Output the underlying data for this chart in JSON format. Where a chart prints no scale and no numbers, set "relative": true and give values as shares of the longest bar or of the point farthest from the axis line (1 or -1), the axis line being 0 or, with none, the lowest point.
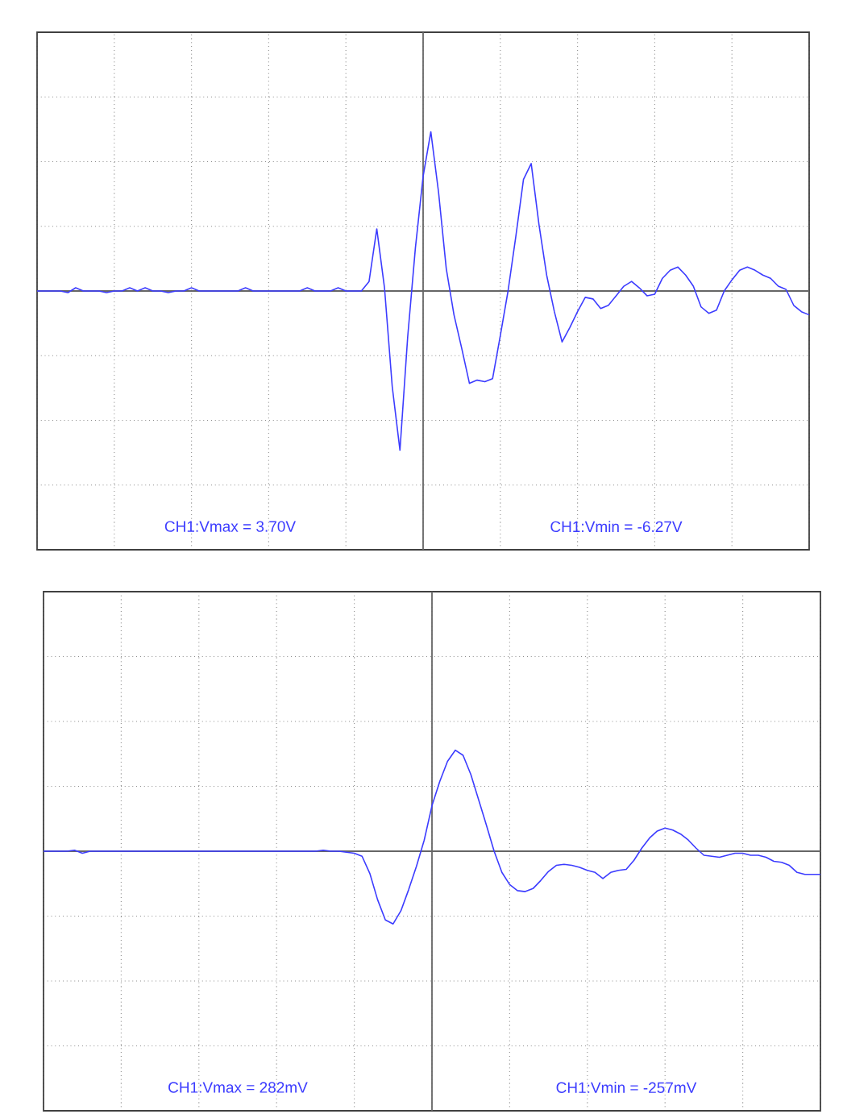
{
  "chart_data": [
    {
      "type": "line",
      "relative": true,
      "grid": true,
      "line_style": "solid",
      "categories": [
        null,
        null,
        null,
        null,
        null,
        null,
        null,
        null,
        null,
        null,
        null,
        null,
        null,
        null,
        null,
        null,
        null,
        null,
        null,
        null,
        null,
        null,
        null,
        null,
        null,
        null,
        null,
        null,
        null,
        null,
        null,
        null,
        null,
        null,
        null,
        null,
        null,
        null,
        null,
        null,
        null,
        null,
        null,
        null,
        null,
        null,
        null,
        null,
        null,
        null,
        null,
        null,
        null,
        null,
        null,
        null,
        null,
        null,
        null,
        null,
        null,
        null,
        null,
        null,
        null,
        null,
        null,
        null,
        null,
        null,
        null,
        null,
        null,
        null,
        null,
        null,
        null,
        null,
        null,
        null,
        null,
        null,
        null,
        null,
        null,
        null,
        null,
        null,
        null,
        null,
        null,
        null,
        null,
        null,
        null,
        null,
        null,
        null,
        null,
        null,
        null
      ],
      "series": [
        {
          "color": "#3c3cff",
          "values": [
            0,
            0,
            0,
            0,
            -0.01,
            0.02,
            0,
            0,
            0,
            -0.01,
            0,
            0,
            0.02,
            0,
            0.02,
            0,
            0,
            -0.01,
            0,
            0,
            0.02,
            0,
            0,
            0,
            0,
            0,
            0,
            0.02,
            0,
            0,
            0,
            0,
            0,
            0,
            0,
            0.02,
            0,
            0,
            0,
            0.02,
            0,
            0,
            0,
            0.06,
            0.39,
            0.02,
            -0.6,
            -1.0,
            -0.29,
            0.27,
            0.72,
            1.0,
            0.62,
            0.14,
            -0.15,
            -0.36,
            -0.58,
            -0.56,
            -0.57,
            -0.55,
            -0.28,
            0.0,
            0.34,
            0.7,
            0.8,
            0.42,
            0.1,
            -0.13,
            -0.32,
            -0.23,
            -0.13,
            -0.04,
            -0.05,
            -0.11,
            -0.09,
            -0.03,
            0.03,
            0.06,
            0.02,
            -0.03,
            -0.02,
            0.08,
            0.13,
            0.15,
            0.1,
            0.03,
            -0.1,
            -0.14,
            -0.12,
            0.0,
            0.07,
            0.13,
            0.15,
            0.13,
            0.1,
            0.08,
            0.03,
            0.01,
            -0.09,
            -0.13,
            -0.15
          ]
        }
      ],
      "annotations": [
        "CH1:Vmax = 3.70V",
        "CH1:Vmin = -6.27V"
      ]
    },
    {
      "type": "line",
      "relative": true,
      "grid": true,
      "line_style": "solid",
      "categories": [
        null,
        null,
        null,
        null,
        null,
        null,
        null,
        null,
        null,
        null,
        null,
        null,
        null,
        null,
        null,
        null,
        null,
        null,
        null,
        null,
        null,
        null,
        null,
        null,
        null,
        null,
        null,
        null,
        null,
        null,
        null,
        null,
        null,
        null,
        null,
        null,
        null,
        null,
        null,
        null,
        null,
        null,
        null,
        null,
        null,
        null,
        null,
        null,
        null,
        null,
        null,
        null,
        null,
        null,
        null,
        null,
        null,
        null,
        null,
        null,
        null,
        null,
        null,
        null,
        null,
        null,
        null,
        null,
        null,
        null,
        null,
        null,
        null,
        null,
        null,
        null,
        null,
        null,
        null,
        null,
        null,
        null,
        null,
        null,
        null,
        null,
        null,
        null,
        null,
        null,
        null,
        null,
        null,
        null,
        null,
        null,
        null,
        null,
        null,
        null,
        null
      ],
      "series": [
        {
          "color": "#3c3cff",
          "values": [
            0,
            0,
            0,
            0,
            0.01,
            -0.02,
            0,
            0,
            0,
            0,
            0,
            0,
            0,
            0,
            0,
            0,
            0,
            0,
            0,
            0,
            0,
            0,
            0,
            0,
            0,
            0,
            0,
            0,
            0,
            0,
            0,
            0,
            0,
            0,
            0,
            0,
            0.01,
            0,
            0,
            -0.01,
            -0.02,
            -0.05,
            -0.22,
            -0.48,
            -0.68,
            -0.72,
            -0.59,
            -0.38,
            -0.15,
            0.11,
            0.45,
            0.69,
            0.89,
            1.0,
            0.95,
            0.76,
            0.51,
            0.26,
            0,
            -0.21,
            -0.33,
            -0.39,
            -0.4,
            -0.37,
            -0.29,
            -0.2,
            -0.14,
            -0.13,
            -0.14,
            -0.16,
            -0.19,
            -0.21,
            -0.27,
            -0.21,
            -0.19,
            -0.18,
            -0.09,
            0.03,
            0.13,
            0.2,
            0.23,
            0.21,
            0.17,
            0.11,
            0.03,
            -0.04,
            -0.05,
            -0.06,
            -0.04,
            -0.02,
            -0.02,
            -0.04,
            -0.04,
            -0.06,
            -0.1,
            -0.11,
            -0.14,
            -0.21,
            -0.23,
            -0.23,
            -0.23
          ]
        }
      ],
      "annotations": [
        "CH1:Vmax = 282mV",
        "CH1:Vmin = -257mV"
      ]
    }
  ]
}
